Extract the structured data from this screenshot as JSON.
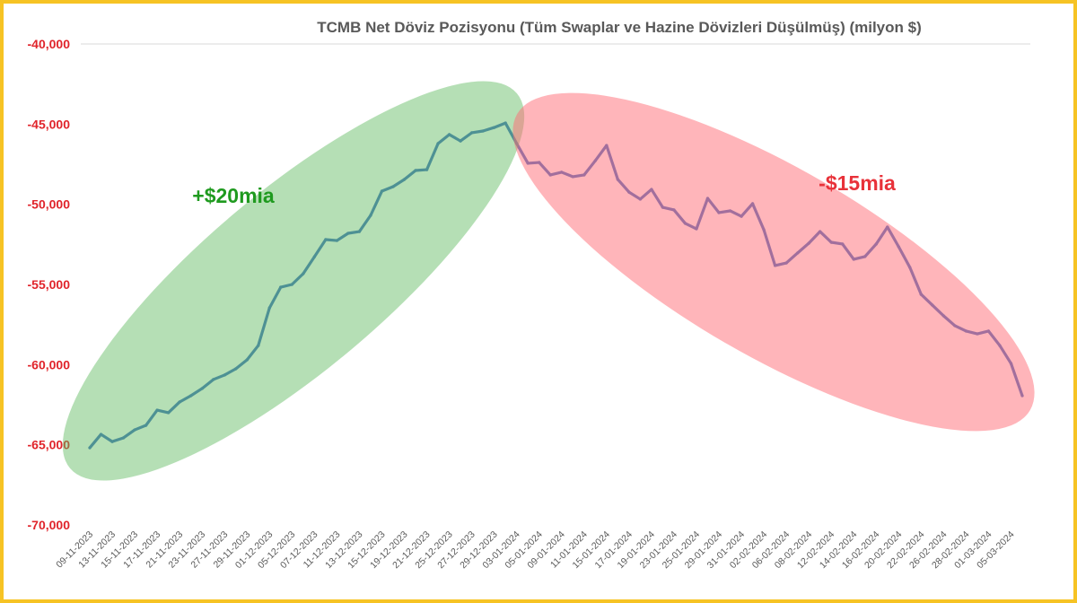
{
  "chart_data": {
    "type": "line",
    "title": "TCMB Net Döviz Pozisyonu (Tüm Swaplar ve Hazine Dövizleri Düşülmüş) (milyon $)",
    "xlabel": "",
    "ylabel": "",
    "ylim": [
      -70000,
      -40000
    ],
    "yticks": [
      -40000,
      -45000,
      -50000,
      -55000,
      -60000,
      -65000,
      -70000
    ],
    "ytick_labels": [
      "-40,000",
      "-45,000",
      "-50,000",
      "-55,000",
      "-60,000",
      "-65,000",
      "-70,000"
    ],
    "x_tick_labels": [
      "09-11-2023",
      "13-11-2023",
      "15-11-2023",
      "17-11-2023",
      "21-11-2023",
      "23-11-2023",
      "27-11-2023",
      "29-11-2023",
      "01-12-2023",
      "05-12-2023",
      "07-12-2023",
      "11-12-2023",
      "13-12-2023",
      "15-12-2023",
      "19-12-2023",
      "21-12-2023",
      "25-12-2023",
      "27-12-2023",
      "29-12-2023",
      "03-01-2024",
      "05-01-2024",
      "09-01-2024",
      "11-01-2024",
      "15-01-2024",
      "17-01-2024",
      "19-01-2024",
      "23-01-2024",
      "25-01-2024",
      "29-01-2024",
      "31-01-2024",
      "02-02-2024",
      "06-02-2024",
      "08-02-2024",
      "12-02-2024",
      "14-02-2024",
      "16-02-2024",
      "20-02-2024",
      "22-02-2024",
      "26-02-2024",
      "28-02-2024",
      "01-03-2024",
      "05-03-2024"
    ],
    "x_tick_every": 2,
    "grid": false,
    "legend": "none",
    "series": [
      {
        "name": "Net Döviz Pozisyonu",
        "color": "#4472c4",
        "values": [
          -65190,
          -64350,
          -64800,
          -64570,
          -64070,
          -63790,
          -62840,
          -63000,
          -62330,
          -61940,
          -61490,
          -60930,
          -60650,
          -60260,
          -59700,
          -58810,
          -56460,
          -55170,
          -55000,
          -54330,
          -53270,
          -52200,
          -52260,
          -51810,
          -51700,
          -50690,
          -49180,
          -48900,
          -48450,
          -47890,
          -47840,
          -46210,
          -45650,
          -46050,
          -45540,
          -45430,
          -45210,
          -44930,
          -46210,
          -47440,
          -47390,
          -48170,
          -48000,
          -48280,
          -48170,
          -47280,
          -46330,
          -48450,
          -49240,
          -49680,
          -49070,
          -50190,
          -50350,
          -51190,
          -51530,
          -49630,
          -50520,
          -50410,
          -50750,
          -49960,
          -51590,
          -53820,
          -53660,
          -53040,
          -52430,
          -51700,
          -52370,
          -52480,
          -53430,
          -53260,
          -52480,
          -51420,
          -52650,
          -53940,
          -55620,
          -56290,
          -56960,
          -57570,
          -57910,
          -58080,
          -57910,
          -58810,
          -59930,
          -61940
        ]
      }
    ],
    "annotations": [
      {
        "text": "+$20mia",
        "color": "#1f9a1f",
        "highlight_color": "#a8dba6"
      },
      {
        "text": "-$15mia",
        "color": "#e8323a",
        "highlight_color": "#ff9aa0"
      }
    ]
  }
}
